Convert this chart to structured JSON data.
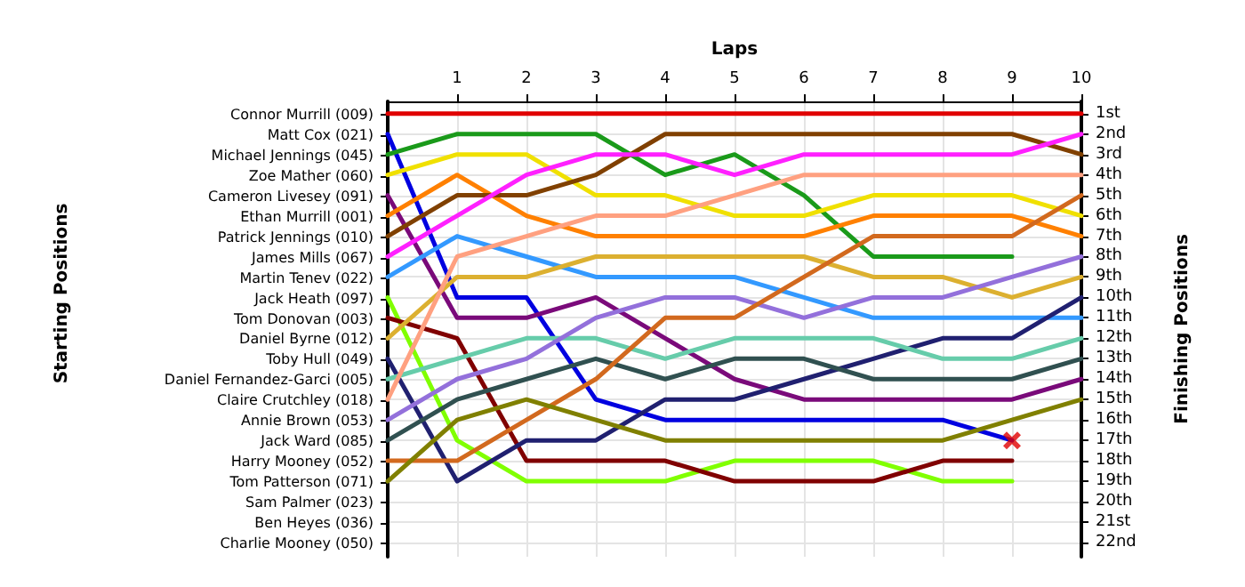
{
  "chart_data": {
    "type": "line",
    "xlabel": "Laps",
    "annotations": [
      "Starting Positions"
    ],
    "y2label": "Finishing Positions",
    "x": [
      0,
      1,
      2,
      3,
      4,
      5,
      6,
      7,
      8,
      9,
      10
    ],
    "xlim": [
      0,
      10
    ],
    "xticks": [
      1,
      2,
      3,
      4,
      5,
      6,
      7,
      8,
      9,
      10
    ],
    "y_categories": [
      "Connor Murrill (009)",
      "Matt Cox (021)",
      "Michael Jennings (045)",
      "Zoe Mather (060)",
      "Cameron Livesey (091)",
      "Ethan Murrill (001)",
      "Patrick Jennings (010)",
      "James Mills (067)",
      "Martin Tenev (022)",
      "Jack Heath (097)",
      "Tom Donovan (003)",
      "Daniel Byrne (012)",
      "Toby Hull (049)",
      "Daniel Fernandez-Garci (005)",
      "Claire Crutchley (018)",
      "Annie Brown (053)",
      "Jack Ward (085)",
      "Harry Mooney (052)",
      "Tom Patterson (071)",
      "Sam Palmer (023)",
      "Ben Heyes (036)",
      "Charlie Mooney (050)"
    ],
    "y2lim": [
      22.7,
      0.4
    ],
    "y2ticks": [
      {
        "value": 1,
        "label": "1st"
      },
      {
        "value": 2,
        "label": "2nd"
      },
      {
        "value": 3,
        "label": "3rd"
      },
      {
        "value": 4,
        "label": "4th"
      },
      {
        "value": 5,
        "label": "5th"
      },
      {
        "value": 6,
        "label": "6th"
      },
      {
        "value": 7,
        "label": "7th"
      },
      {
        "value": 8,
        "label": "8th"
      },
      {
        "value": 9,
        "label": "9th"
      },
      {
        "value": 10,
        "label": "10th"
      },
      {
        "value": 11,
        "label": "11th"
      },
      {
        "value": 12,
        "label": "12th"
      },
      {
        "value": 13,
        "label": "13th"
      },
      {
        "value": 14,
        "label": "14th"
      },
      {
        "value": 15,
        "label": "15th"
      },
      {
        "value": 16,
        "label": "16th"
      },
      {
        "value": 17,
        "label": "17th"
      },
      {
        "value": 18,
        "label": "18th"
      },
      {
        "value": 19,
        "label": "19th"
      },
      {
        "value": 20,
        "label": "20th"
      },
      {
        "value": 21,
        "label": "21st"
      },
      {
        "value": 22,
        "label": "22nd"
      }
    ],
    "grid": true,
    "marker": "none",
    "line_style": "solid",
    "series": [
      {
        "axis": "y2",
        "color": "#e00000",
        "values": [
          1,
          1,
          1,
          1,
          1,
          1,
          1,
          1,
          1,
          1,
          1
        ]
      },
      {
        "axis": "y2",
        "color": "#0000e0",
        "values": [
          2,
          10,
          10,
          15,
          16,
          16,
          16,
          16,
          16,
          17,
          null
        ]
      },
      {
        "axis": "y2",
        "color": "#1a9a1a",
        "values": [
          3,
          2,
          2,
          2,
          4,
          3,
          5,
          8,
          8,
          8,
          null
        ]
      },
      {
        "axis": "y2",
        "color": "#f0e000",
        "values": [
          4,
          3,
          3,
          5,
          5,
          6,
          6,
          5,
          5,
          5,
          6
        ]
      },
      {
        "axis": "y2",
        "color": "#7a0a7a",
        "values": [
          5,
          11,
          11,
          10,
          12,
          14,
          15,
          15,
          15,
          15,
          14
        ]
      },
      {
        "axis": "y2",
        "color": "#ff8000",
        "values": [
          6,
          4,
          6,
          7,
          7,
          7,
          7,
          6,
          6,
          6,
          7
        ]
      },
      {
        "axis": "y2",
        "color": "#804000",
        "values": [
          7,
          5,
          5,
          4,
          2,
          2,
          2,
          2,
          2,
          2,
          3
        ]
      },
      {
        "axis": "y2",
        "color": "#ff20ff",
        "values": [
          8,
          6,
          4,
          3,
          3,
          4,
          3,
          3,
          3,
          3,
          2
        ]
      },
      {
        "axis": "y2",
        "color": "#3399ff",
        "values": [
          9,
          7,
          8,
          9,
          9,
          9,
          10,
          11,
          11,
          11,
          11
        ]
      },
      {
        "axis": "y2",
        "color": "#80ff00",
        "values": [
          10,
          17,
          19,
          19,
          19,
          18,
          18,
          18,
          19,
          19,
          null
        ]
      },
      {
        "axis": "y2",
        "color": "#800000",
        "values": [
          11,
          12,
          18,
          18,
          18,
          19,
          19,
          19,
          18,
          18,
          null
        ]
      },
      {
        "axis": "y2",
        "color": "#dcb030",
        "values": [
          12,
          9,
          9,
          8,
          8,
          8,
          8,
          9,
          9,
          10,
          9
        ]
      },
      {
        "axis": "y2",
        "color": "#202070",
        "values": [
          13,
          19,
          17,
          17,
          15,
          15,
          14,
          13,
          12,
          12,
          10
        ]
      },
      {
        "axis": "y2",
        "color": "#66ccaa",
        "values": [
          14,
          13,
          12,
          12,
          13,
          12,
          12,
          12,
          13,
          13,
          12
        ]
      },
      {
        "axis": "y2",
        "color": "#ffa080",
        "values": [
          15,
          8,
          7,
          6,
          6,
          5,
          4,
          4,
          4,
          4,
          4
        ]
      },
      {
        "axis": "y2",
        "color": "#9370db",
        "values": [
          16,
          14,
          13,
          11,
          10,
          10,
          11,
          10,
          10,
          9,
          8
        ]
      },
      {
        "axis": "y2",
        "color": "#305050",
        "values": [
          17,
          15,
          14,
          13,
          14,
          13,
          13,
          14,
          14,
          14,
          13
        ]
      },
      {
        "axis": "y2",
        "color": "#d2691e",
        "values": [
          18,
          18,
          16,
          14,
          11,
          11,
          9,
          7,
          7,
          7,
          5
        ]
      },
      {
        "axis": "y2",
        "color": "#808000",
        "values": [
          19,
          16,
          15,
          16,
          17,
          17,
          17,
          17,
          17,
          16,
          15
        ]
      },
      {
        "axis": "y2",
        "type": "scatter",
        "marker": "cross",
        "color": "#e00000",
        "x": [
          9
        ],
        "values": [
          17
        ]
      }
    ]
  }
}
